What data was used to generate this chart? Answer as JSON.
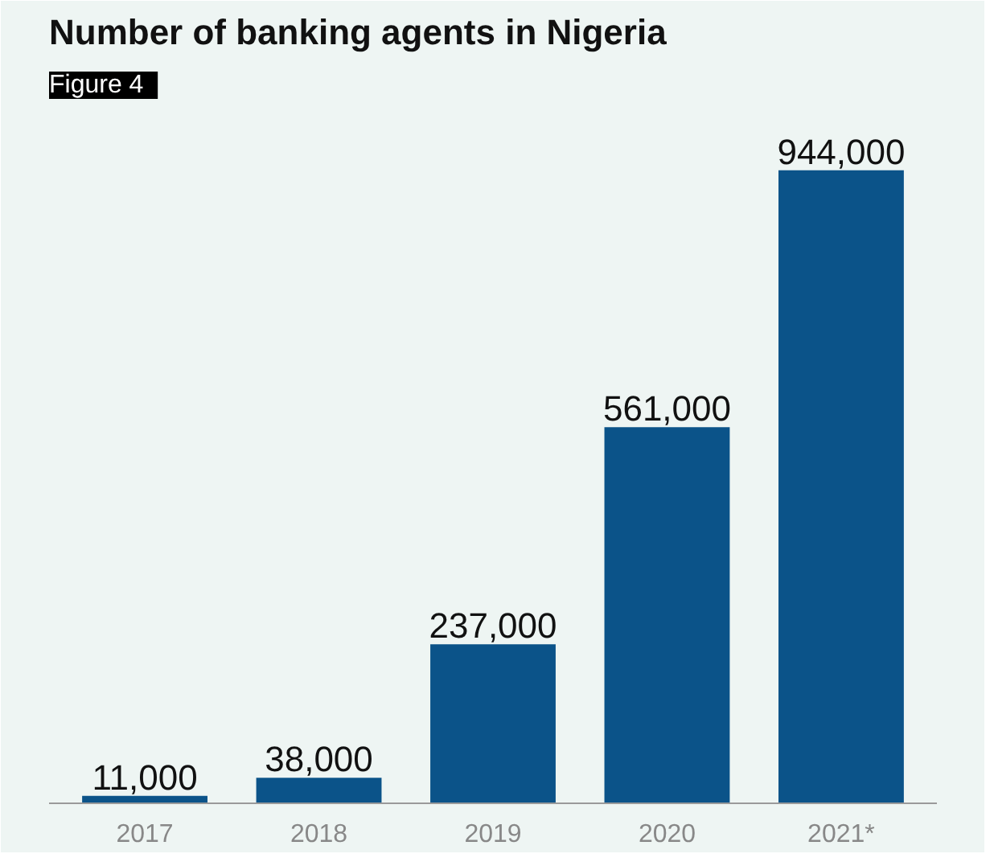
{
  "chart_data": {
    "type": "bar",
    "title": "Number of banking agents in Nigeria",
    "annotations": [
      "Figure 4"
    ],
    "categories": [
      "2017",
      "2018",
      "2019",
      "2020",
      "2021*"
    ],
    "values": [
      11000,
      38000,
      237000,
      561000,
      944000
    ],
    "value_labels": [
      "11,000",
      "38,000",
      "237,000",
      "561,000",
      "944,000"
    ],
    "color": "#0b5389",
    "grid": false
  }
}
